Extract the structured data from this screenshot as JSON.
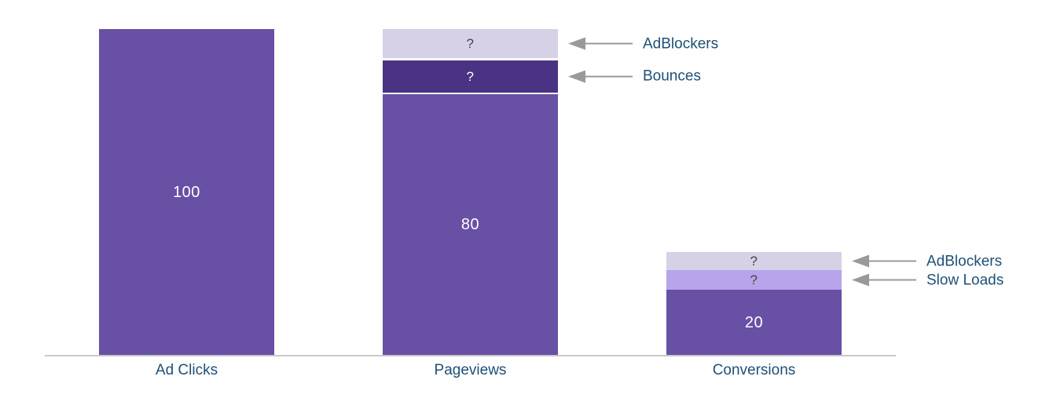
{
  "colors": {
    "bar_main": "#6850a5",
    "bar_dark": "#4a3384",
    "bar_light": "#d6d1e7",
    "bar_medium": "#b8a4ea",
    "value_text_light": "#ffffff",
    "value_text_dark": "#454545",
    "axis_line": "#c9c9c9",
    "arrow": "#999999",
    "label_text": "#1d5076"
  },
  "chart_data": {
    "type": "bar",
    "subtype": "stacked-funnel",
    "title": "",
    "xlabel": "",
    "ylabel": "",
    "grid": false,
    "legend": false,
    "value_axis_range": [
      0,
      100
    ],
    "categories": [
      "Ad Clicks",
      "Pageviews",
      "Conversions"
    ],
    "note": "Segments displaying '?' have unknown magnitudes; their numeric values are estimated from pixel heights.",
    "bars": [
      {
        "category": "Ad Clicks",
        "segment_gap": 0,
        "segments": [
          {
            "name": "Ad Clicks",
            "display": "100",
            "value": 100,
            "color_key": "bar_main",
            "text_key": "value_text_light"
          }
        ]
      },
      {
        "category": "Pageviews",
        "segment_gap": 2,
        "segments": [
          {
            "name": "Pageviews",
            "display": "80",
            "value": 80,
            "color_key": "bar_main",
            "text_key": "value_text_light"
          },
          {
            "name": "Bounces",
            "display": "?",
            "value": 10,
            "color_key": "bar_dark",
            "text_key": "value_text_light",
            "annotation": "Bounces"
          },
          {
            "name": "AdBlockers",
            "display": "?",
            "value": 9,
            "color_key": "bar_light",
            "text_key": "value_text_dark",
            "annotation": "AdBlockers"
          }
        ]
      },
      {
        "category": "Conversions",
        "segment_gap": 0,
        "segments": [
          {
            "name": "Conversions",
            "display": "20",
            "value": 20,
            "color_key": "bar_main",
            "text_key": "value_text_light"
          },
          {
            "name": "Slow Loads",
            "display": "?",
            "value": 6,
            "color_key": "bar_medium",
            "text_key": "value_text_dark",
            "annotation": "Slow Loads"
          },
          {
            "name": "AdBlockers",
            "display": "?",
            "value": 5.5,
            "color_key": "bar_light",
            "text_key": "value_text_dark",
            "annotation": "AdBlockers"
          }
        ]
      }
    ]
  }
}
